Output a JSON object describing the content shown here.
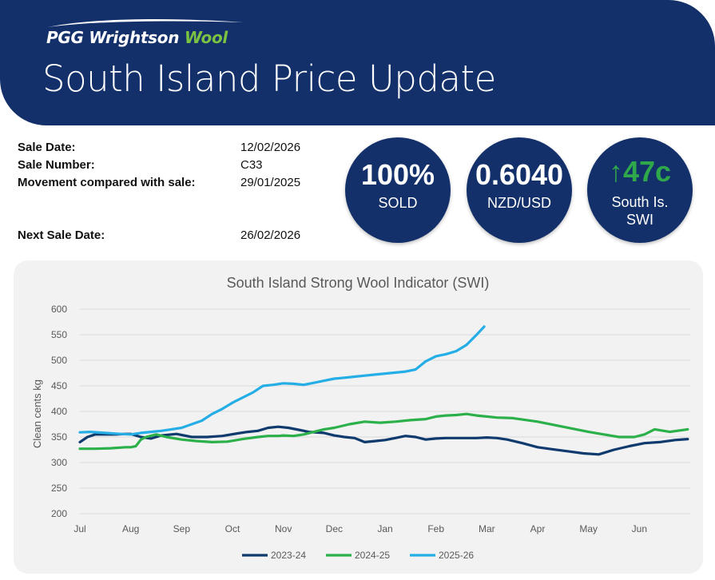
{
  "header": {
    "brand_main": "PGG Wrightson",
    "brand_accent": "Wool",
    "title": "South Island Price Update"
  },
  "sale_info": {
    "sale_date_label": "Sale Date:",
    "sale_date": "12/02/2026",
    "sale_number_label": "Sale Number:",
    "sale_number": "C33",
    "movement_label": "Movement compared with sale:",
    "movement_date": "29/01/2025",
    "next_sale_label": "Next Sale Date:",
    "next_sale_date": "26/02/2026"
  },
  "stats": {
    "sold_value": "100%",
    "sold_label": "SOLD",
    "fx_value": "0.6040",
    "fx_label": "NZD/USD",
    "swi_arrow": "↑",
    "swi_value": "47c",
    "swi_label_1": "South Is.",
    "swi_label_2": "SWI"
  },
  "colors": {
    "navy": "#13306a",
    "green_accent": "#7bc142",
    "series_2023": "#0f3a6e",
    "series_2024": "#2bb04a",
    "series_2025": "#25aee6"
  },
  "chart_data": {
    "type": "line",
    "title": "South Island Strong Wool Indicator (SWI)",
    "ylabel": "Clean cents kg",
    "xlabel": "",
    "ylim": [
      200,
      600
    ],
    "yticks": [
      200,
      250,
      300,
      350,
      400,
      450,
      500,
      550,
      600
    ],
    "x_ticks": [
      "Jul",
      "Aug",
      "Sep",
      "Oct",
      "Nov",
      "Dec",
      "Jan",
      "Feb",
      "Mar",
      "Apr",
      "May",
      "Jun"
    ],
    "grid": true,
    "legend": "bottom",
    "series": [
      {
        "name": "2023-24",
        "x": [
          0,
          0.15,
          0.3,
          0.5,
          0.7,
          0.9,
          1.0,
          1.2,
          1.4,
          1.6,
          1.9,
          2.2,
          2.5,
          2.8,
          3.1,
          3.3,
          3.5,
          3.7,
          3.9,
          4.1,
          4.3,
          4.5,
          4.8,
          5.0,
          5.2,
          5.4,
          5.6,
          5.8,
          6.0,
          6.1,
          6.2,
          6.4,
          6.6,
          6.8,
          7.0,
          7.2,
          7.4,
          7.6,
          7.8,
          8.0,
          8.2,
          8.4,
          8.7,
          9.0,
          9.3,
          9.6,
          9.9,
          10.2,
          10.5,
          10.8,
          11.1,
          11.4,
          11.7,
          11.95
        ],
        "values": [
          340,
          350,
          355,
          355,
          355,
          356,
          356,
          350,
          347,
          353,
          356,
          350,
          350,
          352,
          357,
          360,
          362,
          368,
          370,
          368,
          364,
          360,
          358,
          353,
          350,
          348,
          340,
          342,
          344,
          346,
          348,
          352,
          350,
          345,
          347,
          348,
          348,
          348,
          348,
          349,
          348,
          345,
          338,
          330,
          326,
          322,
          318,
          316,
          325,
          332,
          338,
          340,
          344,
          346
        ]
      },
      {
        "name": "2024-25",
        "x": [
          0,
          0.3,
          0.6,
          0.9,
          1.0,
          1.1,
          1.2,
          1.3,
          1.5,
          1.7,
          2.0,
          2.3,
          2.6,
          2.9,
          3.2,
          3.5,
          3.7,
          3.9,
          4.0,
          4.2,
          4.4,
          4.6,
          4.8,
          5.0,
          5.3,
          5.6,
          5.9,
          6.2,
          6.5,
          6.8,
          7.0,
          7.2,
          7.4,
          7.6,
          7.8,
          8.0,
          8.2,
          8.5,
          9.0,
          9.5,
          10.0,
          10.3,
          10.6,
          10.9,
          11.1,
          11.3,
          11.6,
          11.95
        ],
        "values": [
          327,
          327,
          328,
          330,
          330,
          332,
          345,
          350,
          355,
          350,
          345,
          342,
          340,
          341,
          346,
          350,
          352,
          352,
          353,
          352,
          355,
          360,
          365,
          368,
          375,
          380,
          378,
          380,
          383,
          385,
          390,
          392,
          393,
          395,
          392,
          390,
          388,
          387,
          380,
          370,
          360,
          355,
          350,
          350,
          355,
          365,
          360,
          365
        ]
      },
      {
        "name": "2025-26",
        "x": [
          0,
          0.2,
          0.5,
          0.8,
          1.0,
          1.2,
          1.4,
          1.6,
          1.8,
          2.0,
          2.2,
          2.4,
          2.6,
          2.8,
          3.0,
          3.2,
          3.4,
          3.6,
          3.8,
          4.0,
          4.2,
          4.4,
          4.6,
          4.8,
          5.0,
          5.2,
          5.4,
          5.6,
          5.8,
          6.0,
          6.2,
          6.4,
          6.6,
          6.8,
          7.0,
          7.2,
          7.4,
          7.6,
          7.8,
          7.95
        ],
        "values": [
          359,
          360,
          358,
          356,
          355,
          358,
          360,
          362,
          365,
          368,
          375,
          382,
          395,
          405,
          417,
          427,
          437,
          450,
          452,
          455,
          454,
          452,
          456,
          460,
          464,
          466,
          468,
          470,
          472,
          474,
          476,
          478,
          482,
          498,
          508,
          512,
          518,
          530,
          550,
          566
        ]
      }
    ]
  }
}
